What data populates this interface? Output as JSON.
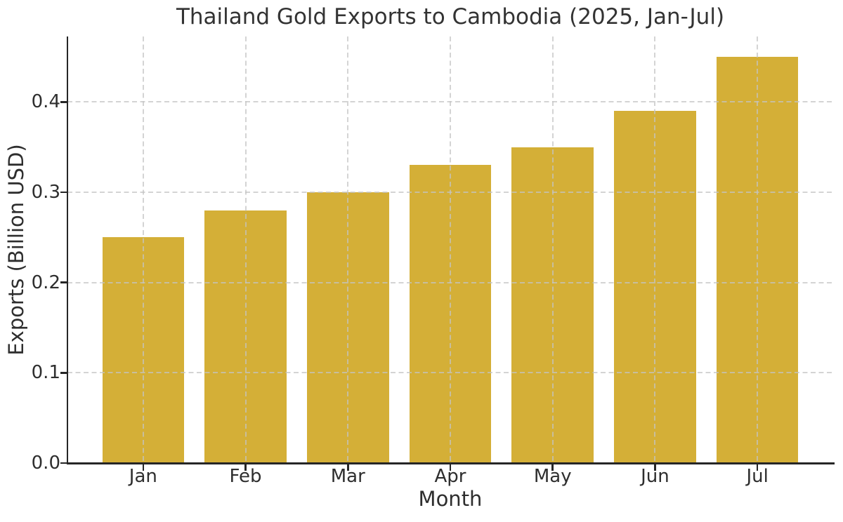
{
  "chart_data": {
    "type": "bar",
    "title": "Thailand Gold Exports to Cambodia (2025, Jan-Jul)",
    "xlabel": "Month",
    "ylabel": "Exports (Billion USD)",
    "categories": [
      "Jan",
      "Feb",
      "Mar",
      "Apr",
      "May",
      "Jun",
      "Jul"
    ],
    "values": [
      0.25,
      0.28,
      0.3,
      0.33,
      0.35,
      0.39,
      0.45
    ],
    "ylim": [
      0,
      0.4725
    ],
    "yticks": {
      "values": [
        0.0,
        0.1,
        0.2,
        0.3,
        0.4
      ],
      "labels": [
        "0.0",
        "0.1",
        "0.2",
        "0.3",
        "0.4"
      ]
    },
    "bar_color": "#D4AF37",
    "grid": "both, dashed, drawn above bars",
    "legend": "none",
    "colors": {
      "background": "#ffffff",
      "grid": "#c4c4c4",
      "spine": "#262626",
      "text": "#2e2e2e",
      "title": "#333333"
    }
  }
}
